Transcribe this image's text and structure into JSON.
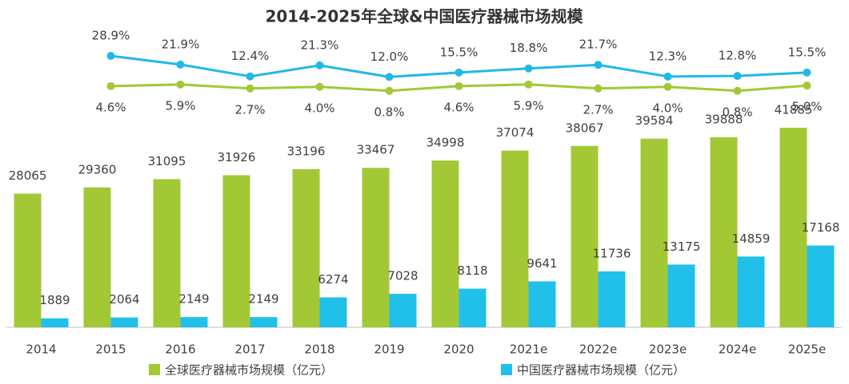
{
  "chart_data": {
    "type": "bar",
    "title": "2014-2025年全球&中国医疗器械市场规模",
    "categories": [
      "2014",
      "2015",
      "2016",
      "2017",
      "2018",
      "2019",
      "2020",
      "2021e",
      "2022e",
      "2023e",
      "2024e",
      "2025e"
    ],
    "series": [
      {
        "name": "全球医疗器械市场规模（亿元）",
        "color": "#a2c935",
        "values": [
          28065,
          29360,
          31095,
          31926,
          33196,
          33467,
          34998,
          37074,
          38067,
          39584,
          39888,
          41885
        ]
      },
      {
        "name": "中国医疗器械市场规模（亿元）",
        "color": "#21c0eb",
        "values": [
          1889,
          2064,
          2149,
          2149,
          6274,
          7028,
          8118,
          9641,
          11736,
          13175,
          14859,
          17168
        ]
      }
    ],
    "lines": [
      {
        "color": "#21b8e6",
        "values": [
          null,
          28.9,
          21.9,
          12.4,
          21.3,
          12.0,
          15.5,
          18.8,
          21.7,
          12.3,
          12.8,
          15.5
        ],
        "value_labels": [
          null,
          "28.9%",
          "21.9%",
          "12.4%",
          "21.3%",
          "12.0%",
          "15.5%",
          "18.8%",
          "21.7%",
          "12.3%",
          "12.8%",
          "15.5%"
        ]
      },
      {
        "color": "#a2c935",
        "values": [
          null,
          4.6,
          5.9,
          2.7,
          4.0,
          0.8,
          4.6,
          5.9,
          2.7,
          4.0,
          0.8,
          5.0
        ],
        "value_labels": [
          null,
          "4.6%",
          "5.9%",
          "2.7%",
          "4.0%",
          "0.8%",
          "4.6%",
          "5.9%",
          "2.7%",
          "4.0%",
          "0.8%",
          "5.0%"
        ]
      }
    ]
  }
}
